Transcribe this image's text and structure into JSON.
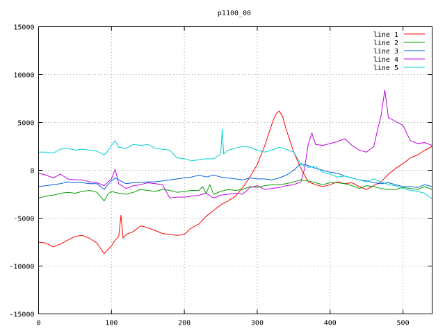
{
  "chart_data": {
    "type": "line",
    "title": "p1100_00",
    "xlabel": "",
    "ylabel": "",
    "xlim": [
      0,
      540
    ],
    "ylim": [
      -15000,
      15000
    ],
    "grid": true,
    "legend_position": "top-right",
    "xticks": [
      0,
      100,
      200,
      300,
      400,
      500
    ],
    "yticks": [
      -15000,
      -10000,
      -5000,
      0,
      5000,
      10000,
      15000
    ],
    "series": [
      {
        "name": "line 1",
        "color": "#ff0000",
        "points": [
          [
            0,
            -7500
          ],
          [
            10,
            -7600
          ],
          [
            20,
            -8000
          ],
          [
            30,
            -7700
          ],
          [
            40,
            -7300
          ],
          [
            50,
            -6900
          ],
          [
            60,
            -6800
          ],
          [
            70,
            -7100
          ],
          [
            80,
            -7600
          ],
          [
            90,
            -8700
          ],
          [
            95,
            -8300
          ],
          [
            100,
            -7900
          ],
          [
            105,
            -7300
          ],
          [
            110,
            -6900
          ],
          [
            113,
            -4700
          ],
          [
            116,
            -7100
          ],
          [
            120,
            -6700
          ],
          [
            130,
            -6400
          ],
          [
            140,
            -5800
          ],
          [
            150,
            -6000
          ],
          [
            160,
            -6300
          ],
          [
            170,
            -6600
          ],
          [
            180,
            -6700
          ],
          [
            190,
            -6800
          ],
          [
            200,
            -6700
          ],
          [
            210,
            -6000
          ],
          [
            220,
            -5600
          ],
          [
            230,
            -4800
          ],
          [
            240,
            -4200
          ],
          [
            250,
            -3600
          ],
          [
            260,
            -3200
          ],
          [
            270,
            -2700
          ],
          [
            280,
            -1800
          ],
          [
            290,
            -700
          ],
          [
            300,
            600
          ],
          [
            310,
            2500
          ],
          [
            320,
            4800
          ],
          [
            325,
            5800
          ],
          [
            330,
            6200
          ],
          [
            335,
            5600
          ],
          [
            340,
            4200
          ],
          [
            350,
            1900
          ],
          [
            360,
            200
          ],
          [
            370,
            -1200
          ],
          [
            380,
            -1500
          ],
          [
            390,
            -1700
          ],
          [
            400,
            -1500
          ],
          [
            410,
            -1200
          ],
          [
            420,
            -1400
          ],
          [
            430,
            -1300
          ],
          [
            440,
            -1700
          ],
          [
            450,
            -2000
          ],
          [
            460,
            -1600
          ],
          [
            470,
            -1200
          ],
          [
            480,
            -400
          ],
          [
            490,
            200
          ],
          [
            500,
            700
          ],
          [
            510,
            1300
          ],
          [
            520,
            1600
          ],
          [
            530,
            2100
          ],
          [
            540,
            2500
          ]
        ]
      },
      {
        "name": "line 2",
        "color": "#00a000",
        "points": [
          [
            0,
            -2900
          ],
          [
            10,
            -2700
          ],
          [
            20,
            -2600
          ],
          [
            30,
            -2400
          ],
          [
            40,
            -2300
          ],
          [
            50,
            -2400
          ],
          [
            60,
            -2200
          ],
          [
            70,
            -2100
          ],
          [
            80,
            -2300
          ],
          [
            90,
            -3200
          ],
          [
            95,
            -2500
          ],
          [
            100,
            -2200
          ],
          [
            110,
            -2400
          ],
          [
            120,
            -2500
          ],
          [
            130,
            -2300
          ],
          [
            140,
            -2000
          ],
          [
            150,
            -2100
          ],
          [
            160,
            -2200
          ],
          [
            170,
            -2000
          ],
          [
            180,
            -2100
          ],
          [
            190,
            -2300
          ],
          [
            200,
            -2200
          ],
          [
            210,
            -2100
          ],
          [
            220,
            -2100
          ],
          [
            225,
            -1700
          ],
          [
            230,
            -2400
          ],
          [
            235,
            -1500
          ],
          [
            240,
            -2500
          ],
          [
            250,
            -2200
          ],
          [
            260,
            -2000
          ],
          [
            270,
            -2100
          ],
          [
            280,
            -2000
          ],
          [
            290,
            -1700
          ],
          [
            300,
            -1800
          ],
          [
            310,
            -1600
          ],
          [
            320,
            -1500
          ],
          [
            330,
            -1500
          ],
          [
            340,
            -1400
          ],
          [
            350,
            -1200
          ],
          [
            360,
            -1000
          ],
          [
            370,
            -1100
          ],
          [
            380,
            -1300
          ],
          [
            390,
            -1500
          ],
          [
            400,
            -1300
          ],
          [
            410,
            -1300
          ],
          [
            420,
            -1400
          ],
          [
            430,
            -1600
          ],
          [
            440,
            -1900
          ],
          [
            450,
            -1600
          ],
          [
            460,
            -1700
          ],
          [
            470,
            -1900
          ],
          [
            480,
            -2000
          ],
          [
            490,
            -2000
          ],
          [
            500,
            -1800
          ],
          [
            510,
            -1900
          ],
          [
            520,
            -2000
          ],
          [
            530,
            -1700
          ],
          [
            540,
            -2000
          ]
        ]
      },
      {
        "name": "line 3",
        "color": "#0060e0",
        "points": [
          [
            0,
            -1700
          ],
          [
            10,
            -1600
          ],
          [
            20,
            -1500
          ],
          [
            30,
            -1400
          ],
          [
            40,
            -1200
          ],
          [
            50,
            -1300
          ],
          [
            60,
            -1300
          ],
          [
            70,
            -1400
          ],
          [
            80,
            -1400
          ],
          [
            90,
            -2000
          ],
          [
            95,
            -1500
          ],
          [
            100,
            -1100
          ],
          [
            105,
            -800
          ],
          [
            110,
            -1000
          ],
          [
            120,
            -1400
          ],
          [
            130,
            -1300
          ],
          [
            140,
            -1300
          ],
          [
            150,
            -1200
          ],
          [
            160,
            -1200
          ],
          [
            170,
            -1100
          ],
          [
            180,
            -1000
          ],
          [
            190,
            -900
          ],
          [
            200,
            -800
          ],
          [
            210,
            -700
          ],
          [
            220,
            -500
          ],
          [
            230,
            -700
          ],
          [
            240,
            -500
          ],
          [
            250,
            -700
          ],
          [
            260,
            -800
          ],
          [
            270,
            -900
          ],
          [
            280,
            -1000
          ],
          [
            290,
            -800
          ],
          [
            300,
            -900
          ],
          [
            310,
            -900
          ],
          [
            320,
            -1000
          ],
          [
            330,
            -800
          ],
          [
            340,
            -500
          ],
          [
            350,
            0
          ],
          [
            360,
            700
          ],
          [
            370,
            500
          ],
          [
            380,
            200
          ],
          [
            390,
            0
          ],
          [
            400,
            -200
          ],
          [
            410,
            -300
          ],
          [
            420,
            -600
          ],
          [
            430,
            -800
          ],
          [
            440,
            -1000
          ],
          [
            450,
            -1100
          ],
          [
            460,
            -1300
          ],
          [
            470,
            -1400
          ],
          [
            480,
            -1300
          ],
          [
            490,
            -1500
          ],
          [
            500,
            -1700
          ],
          [
            510,
            -1700
          ],
          [
            520,
            -1800
          ],
          [
            530,
            -1500
          ],
          [
            540,
            -1700
          ]
        ]
      },
      {
        "name": "line 4",
        "color": "#c000e0",
        "points": [
          [
            0,
            -300
          ],
          [
            10,
            -500
          ],
          [
            20,
            -800
          ],
          [
            30,
            -400
          ],
          [
            40,
            -900
          ],
          [
            50,
            -1000
          ],
          [
            60,
            -1000
          ],
          [
            70,
            -1200
          ],
          [
            80,
            -1300
          ],
          [
            90,
            -1600
          ],
          [
            95,
            -1200
          ],
          [
            100,
            -900
          ],
          [
            105,
            100
          ],
          [
            110,
            -1400
          ],
          [
            120,
            -1900
          ],
          [
            130,
            -1600
          ],
          [
            140,
            -1500
          ],
          [
            150,
            -1300
          ],
          [
            160,
            -1400
          ],
          [
            170,
            -1500
          ],
          [
            180,
            -2900
          ],
          [
            190,
            -2800
          ],
          [
            200,
            -2800
          ],
          [
            210,
            -2700
          ],
          [
            220,
            -2600
          ],
          [
            230,
            -2400
          ],
          [
            240,
            -2900
          ],
          [
            250,
            -2600
          ],
          [
            260,
            -2500
          ],
          [
            270,
            -2400
          ],
          [
            280,
            -2500
          ],
          [
            290,
            -1800
          ],
          [
            300,
            -1600
          ],
          [
            310,
            -2000
          ],
          [
            320,
            -1900
          ],
          [
            330,
            -1800
          ],
          [
            340,
            -1600
          ],
          [
            350,
            -1500
          ],
          [
            360,
            -1200
          ],
          [
            365,
            200
          ],
          [
            370,
            2700
          ],
          [
            375,
            3900
          ],
          [
            380,
            2700
          ],
          [
            390,
            2600
          ],
          [
            400,
            2800
          ],
          [
            410,
            3000
          ],
          [
            420,
            3300
          ],
          [
            430,
            2600
          ],
          [
            440,
            2100
          ],
          [
            450,
            1900
          ],
          [
            460,
            2500
          ],
          [
            465,
            4200
          ],
          [
            470,
            5700
          ],
          [
            475,
            8400
          ],
          [
            480,
            5500
          ],
          [
            490,
            5100
          ],
          [
            500,
            4700
          ],
          [
            510,
            3100
          ],
          [
            520,
            2800
          ],
          [
            530,
            2900
          ],
          [
            540,
            2600
          ]
        ]
      },
      {
        "name": "line 5",
        "color": "#00d0d0",
        "points": [
          [
            0,
            1900
          ],
          [
            10,
            1900
          ],
          [
            20,
            1800
          ],
          [
            30,
            2200
          ],
          [
            40,
            2300
          ],
          [
            50,
            2100
          ],
          [
            60,
            2200
          ],
          [
            70,
            2100
          ],
          [
            80,
            2000
          ],
          [
            90,
            1600
          ],
          [
            95,
            2000
          ],
          [
            100,
            2600
          ],
          [
            105,
            3100
          ],
          [
            110,
            2400
          ],
          [
            120,
            2300
          ],
          [
            130,
            2700
          ],
          [
            140,
            2600
          ],
          [
            150,
            2700
          ],
          [
            160,
            2300
          ],
          [
            170,
            2200
          ],
          [
            180,
            2100
          ],
          [
            190,
            1300
          ],
          [
            200,
            1200
          ],
          [
            210,
            1000
          ],
          [
            220,
            1100
          ],
          [
            230,
            1200
          ],
          [
            240,
            1200
          ],
          [
            250,
            1700
          ],
          [
            252,
            4300
          ],
          [
            254,
            1700
          ],
          [
            260,
            2100
          ],
          [
            270,
            2300
          ],
          [
            280,
            2500
          ],
          [
            290,
            2400
          ],
          [
            300,
            2100
          ],
          [
            310,
            1900
          ],
          [
            320,
            2100
          ],
          [
            330,
            2400
          ],
          [
            340,
            2200
          ],
          [
            350,
            1900
          ],
          [
            360,
            600
          ],
          [
            370,
            300
          ],
          [
            380,
            400
          ],
          [
            390,
            -200
          ],
          [
            400,
            -400
          ],
          [
            410,
            -700
          ],
          [
            420,
            -600
          ],
          [
            430,
            -800
          ],
          [
            440,
            -1000
          ],
          [
            450,
            -1200
          ],
          [
            460,
            -900
          ],
          [
            470,
            -1200
          ],
          [
            480,
            -1500
          ],
          [
            490,
            -1600
          ],
          [
            500,
            -1900
          ],
          [
            510,
            -2100
          ],
          [
            520,
            -2200
          ],
          [
            530,
            -2400
          ],
          [
            540,
            -3000
          ]
        ]
      }
    ]
  }
}
